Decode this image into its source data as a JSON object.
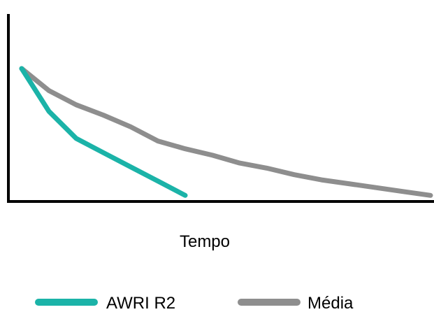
{
  "chart_data": {
    "type": "line",
    "title": "",
    "xlabel": "Tempo",
    "ylabel": "",
    "xlim": [
      0,
      15
    ],
    "ylim": [
      0,
      100
    ],
    "grid": false,
    "axis_ticks": false,
    "legend": {
      "placement": "bottom"
    },
    "series": [
      {
        "name": "AWRI R2",
        "color": "#1BB3A8",
        "x": [
          0,
          1,
          2,
          3,
          4,
          5,
          6
        ],
        "y": [
          100,
          67,
          46,
          35,
          24,
          13,
          2
        ]
      },
      {
        "name": "Média",
        "color": "#8E8E8E",
        "x": [
          0,
          1,
          2,
          3,
          4,
          5,
          6,
          7,
          8,
          9,
          10,
          11,
          12,
          13,
          14,
          15
        ],
        "y": [
          100,
          83,
          72,
          64,
          55,
          44,
          38,
          33,
          27,
          23,
          18,
          14,
          11,
          8,
          5,
          2
        ]
      }
    ]
  }
}
